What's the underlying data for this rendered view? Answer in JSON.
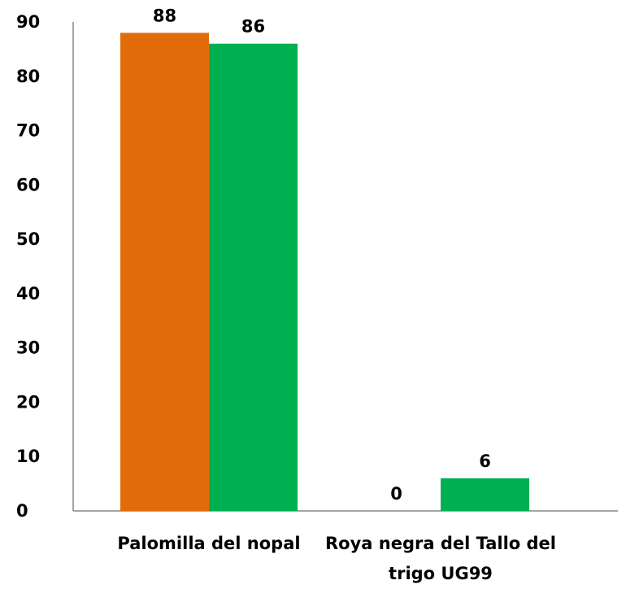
{
  "chart_data": {
    "type": "bar",
    "title": "",
    "xlabel": "",
    "ylabel": "",
    "categories": [
      [
        "Palomilla del nopal"
      ],
      [
        "Roya negra del Tallo del",
        "trigo UG99"
      ]
    ],
    "series": [
      {
        "color": "#E36C0A",
        "values": [
          88,
          0
        ]
      },
      {
        "color": "#00B050",
        "values": [
          86,
          6
        ]
      }
    ],
    "data_labels": [
      [
        "88",
        "0"
      ],
      [
        "86",
        "6"
      ]
    ],
    "yticks": [
      "0",
      "10",
      "20",
      "30",
      "40",
      "50",
      "60",
      "70",
      "80",
      "90"
    ],
    "ylim": [
      0,
      90
    ],
    "grid": false,
    "legend": "none"
  }
}
